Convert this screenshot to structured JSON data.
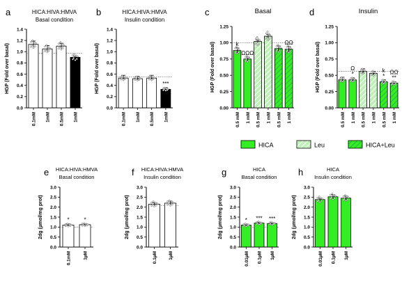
{
  "colors": {
    "white_fill": "#ffffff",
    "black_fill": "#000000",
    "green_fill": "#33ee22",
    "light_green_fill": "#bff0b8",
    "hatch_stroke": "#2e9e55",
    "axis": "#000000",
    "dotted_line": "#777777",
    "point_fill": "#ffffff"
  },
  "legend": {
    "items": [
      {
        "label": "HICA",
        "style": "solid"
      },
      {
        "label": "Leu",
        "style": "light-hatch"
      },
      {
        "label": "HICA+Leu",
        "style": "green-hatch"
      }
    ]
  },
  "chart_data": [
    {
      "panel": "a",
      "type": "bar",
      "title": [
        "HICA:HIVA:HMVA",
        "Basal condition"
      ],
      "ylabel": "HGP (Fold over basal)",
      "ylim": [
        0,
        1.4
      ],
      "yticks": [
        "0.0",
        "0.2",
        "0.4",
        "0.6",
        "0.8",
        "1.0",
        "1.2",
        "1.4"
      ],
      "categories": [
        "0.1mM",
        "1mM",
        "0.5mM",
        "1mM"
      ],
      "values": [
        1.13,
        1.05,
        1.1,
        0.9
      ],
      "errors": [
        0.06,
        0.06,
        0.05,
        0.02
      ],
      "styles": [
        "white",
        "white",
        "white",
        "black"
      ],
      "annotations": [
        "",
        "",
        "",
        ""
      ],
      "ref_line": 0.97
    },
    {
      "panel": "b",
      "type": "bar",
      "title": [
        "HICA:HIVA:HMVA",
        "Insulin condition"
      ],
      "ylabel": "HGP (Fold over basal)",
      "ylim": [
        0,
        1.4
      ],
      "yticks": [
        "0.0",
        "0.2",
        "0.4",
        "0.6",
        "0.8",
        "1.0",
        "1.2",
        "1.4"
      ],
      "categories": [
        "0.1mM",
        "1mM",
        "0.5mM",
        "1mM"
      ],
      "values": [
        0.53,
        0.52,
        0.53,
        0.33
      ],
      "errors": [
        0.05,
        0.04,
        0.05,
        0.03
      ],
      "styles": [
        "white",
        "white",
        "white",
        "black"
      ],
      "annotations": [
        "",
        "",
        "",
        "***"
      ],
      "ref_line": 0.55
    },
    {
      "panel": "c",
      "type": "bar",
      "title": [
        "Basal"
      ],
      "ylabel": "HGP (Fold over basal)",
      "ylim": [
        0,
        1.25
      ],
      "yticks": [
        "0.00",
        "0.25",
        "0.50",
        "0.75",
        "1.00",
        "1.25"
      ],
      "categories": [
        "0.5 mM",
        "1 mM",
        "0.5 mM",
        "1 mM",
        "0.5 mM",
        "1 mM"
      ],
      "values": [
        0.88,
        0.75,
        1.02,
        1.1,
        0.91,
        0.9
      ],
      "errors": [
        0.04,
        0.03,
        0.02,
        0.03,
        0.04,
        0.04
      ],
      "styles": [
        "green",
        "green",
        "light-hatch",
        "light-hatch",
        "green-hatch",
        "green-hatch"
      ],
      "annotations": [
        "k",
        "ΩΩΩ",
        "",
        "",
        "",
        "ΩΩ"
      ],
      "ref_line": 1.0
    },
    {
      "panel": "d",
      "type": "bar",
      "title": [
        "Insulin"
      ],
      "ylabel": "HGP (Fold over basal)",
      "ylim": [
        0,
        1.25
      ],
      "yticks": [
        "0.00",
        "0.25",
        "0.50",
        "0.75",
        "1.00",
        "1.25"
      ],
      "categories": [
        "0.5 mM",
        "1 mM",
        "0.5 mM",
        "1 mM",
        "0.5 mM",
        "1 mM"
      ],
      "values": [
        0.43,
        0.43,
        0.56,
        0.53,
        0.4,
        0.38
      ],
      "errors": [
        0.04,
        0.03,
        0.04,
        0.03,
        0.03,
        0.02
      ],
      "styles": [
        "green",
        "green",
        "light-hatch",
        "light-hatch",
        "green-hatch",
        "green-hatch"
      ],
      "annotations": [
        "",
        "Ω\n*",
        "",
        "",
        "k\n*",
        "ΩΩ\n**"
      ],
      "ref_line": 0.56
    },
    {
      "panel": "e",
      "type": "bar",
      "title": [
        "HICA:HIVA:HMVA",
        "Basal condition"
      ],
      "ylabel": "2dg (µmol/mg prot)",
      "ylim": [
        0,
        3.0
      ],
      "yticks": [
        "0.0",
        "0.5",
        "1.0",
        "1.5",
        "2.0",
        "2.5",
        "3.0"
      ],
      "categories": [
        "0.1mM",
        "1µM"
      ],
      "values": [
        1.1,
        1.12
      ],
      "errors": [
        0.06,
        0.05
      ],
      "styles": [
        "white",
        "white"
      ],
      "annotations": [
        "*",
        "*"
      ],
      "ref_line": 1.0
    },
    {
      "panel": "f",
      "type": "bar",
      "title": [
        "HICA:HIVA:HMVA",
        "Insulin condition"
      ],
      "ylabel": "2dg (µmol/mg prot)",
      "ylim": [
        0,
        3.0
      ],
      "yticks": [
        "0.0",
        "0.5",
        "1.0",
        "1.5",
        "2.0",
        "2.5",
        "3.0"
      ],
      "categories": [
        "0.1µM",
        "1µM"
      ],
      "values": [
        2.15,
        2.2
      ],
      "errors": [
        0.08,
        0.1
      ],
      "styles": [
        "white",
        "white"
      ],
      "annotations": [
        "",
        ""
      ],
      "ref_line": 2.08
    },
    {
      "panel": "g",
      "type": "bar",
      "title": [
        "HICA",
        "Basal condition"
      ],
      "ylabel": "2dg (µmol/mg prot)",
      "ylim": [
        0,
        3.0
      ],
      "yticks": [
        "0.0",
        "0.5",
        "1.0",
        "1.5",
        "2.0",
        "2.5",
        "3.0"
      ],
      "categories": [
        "0.01µM",
        "0.1µM",
        "1µM"
      ],
      "values": [
        1.1,
        1.2,
        1.18
      ],
      "errors": [
        0.05,
        0.04,
        0.04
      ],
      "styles": [
        "green",
        "green",
        "green"
      ],
      "annotations": [
        "*",
        "***",
        "***"
      ],
      "ref_line": 1.0
    },
    {
      "panel": "h",
      "type": "bar",
      "title": [
        "HICA",
        "Insulin condition"
      ],
      "ylabel": "2dg (µmol/mg prot)",
      "ylim": [
        0,
        3.0
      ],
      "yticks": [
        "0.0",
        "0.5",
        "1.0",
        "1.5",
        "2.0",
        "2.5",
        "3.0"
      ],
      "categories": [
        "0.01µM",
        "0.1µM",
        "1µM"
      ],
      "values": [
        2.38,
        2.52,
        2.45
      ],
      "errors": [
        0.06,
        0.1,
        0.1
      ],
      "styles": [
        "green",
        "green",
        "green"
      ],
      "annotations": [
        "",
        "",
        ""
      ],
      "ref_line": null
    }
  ]
}
